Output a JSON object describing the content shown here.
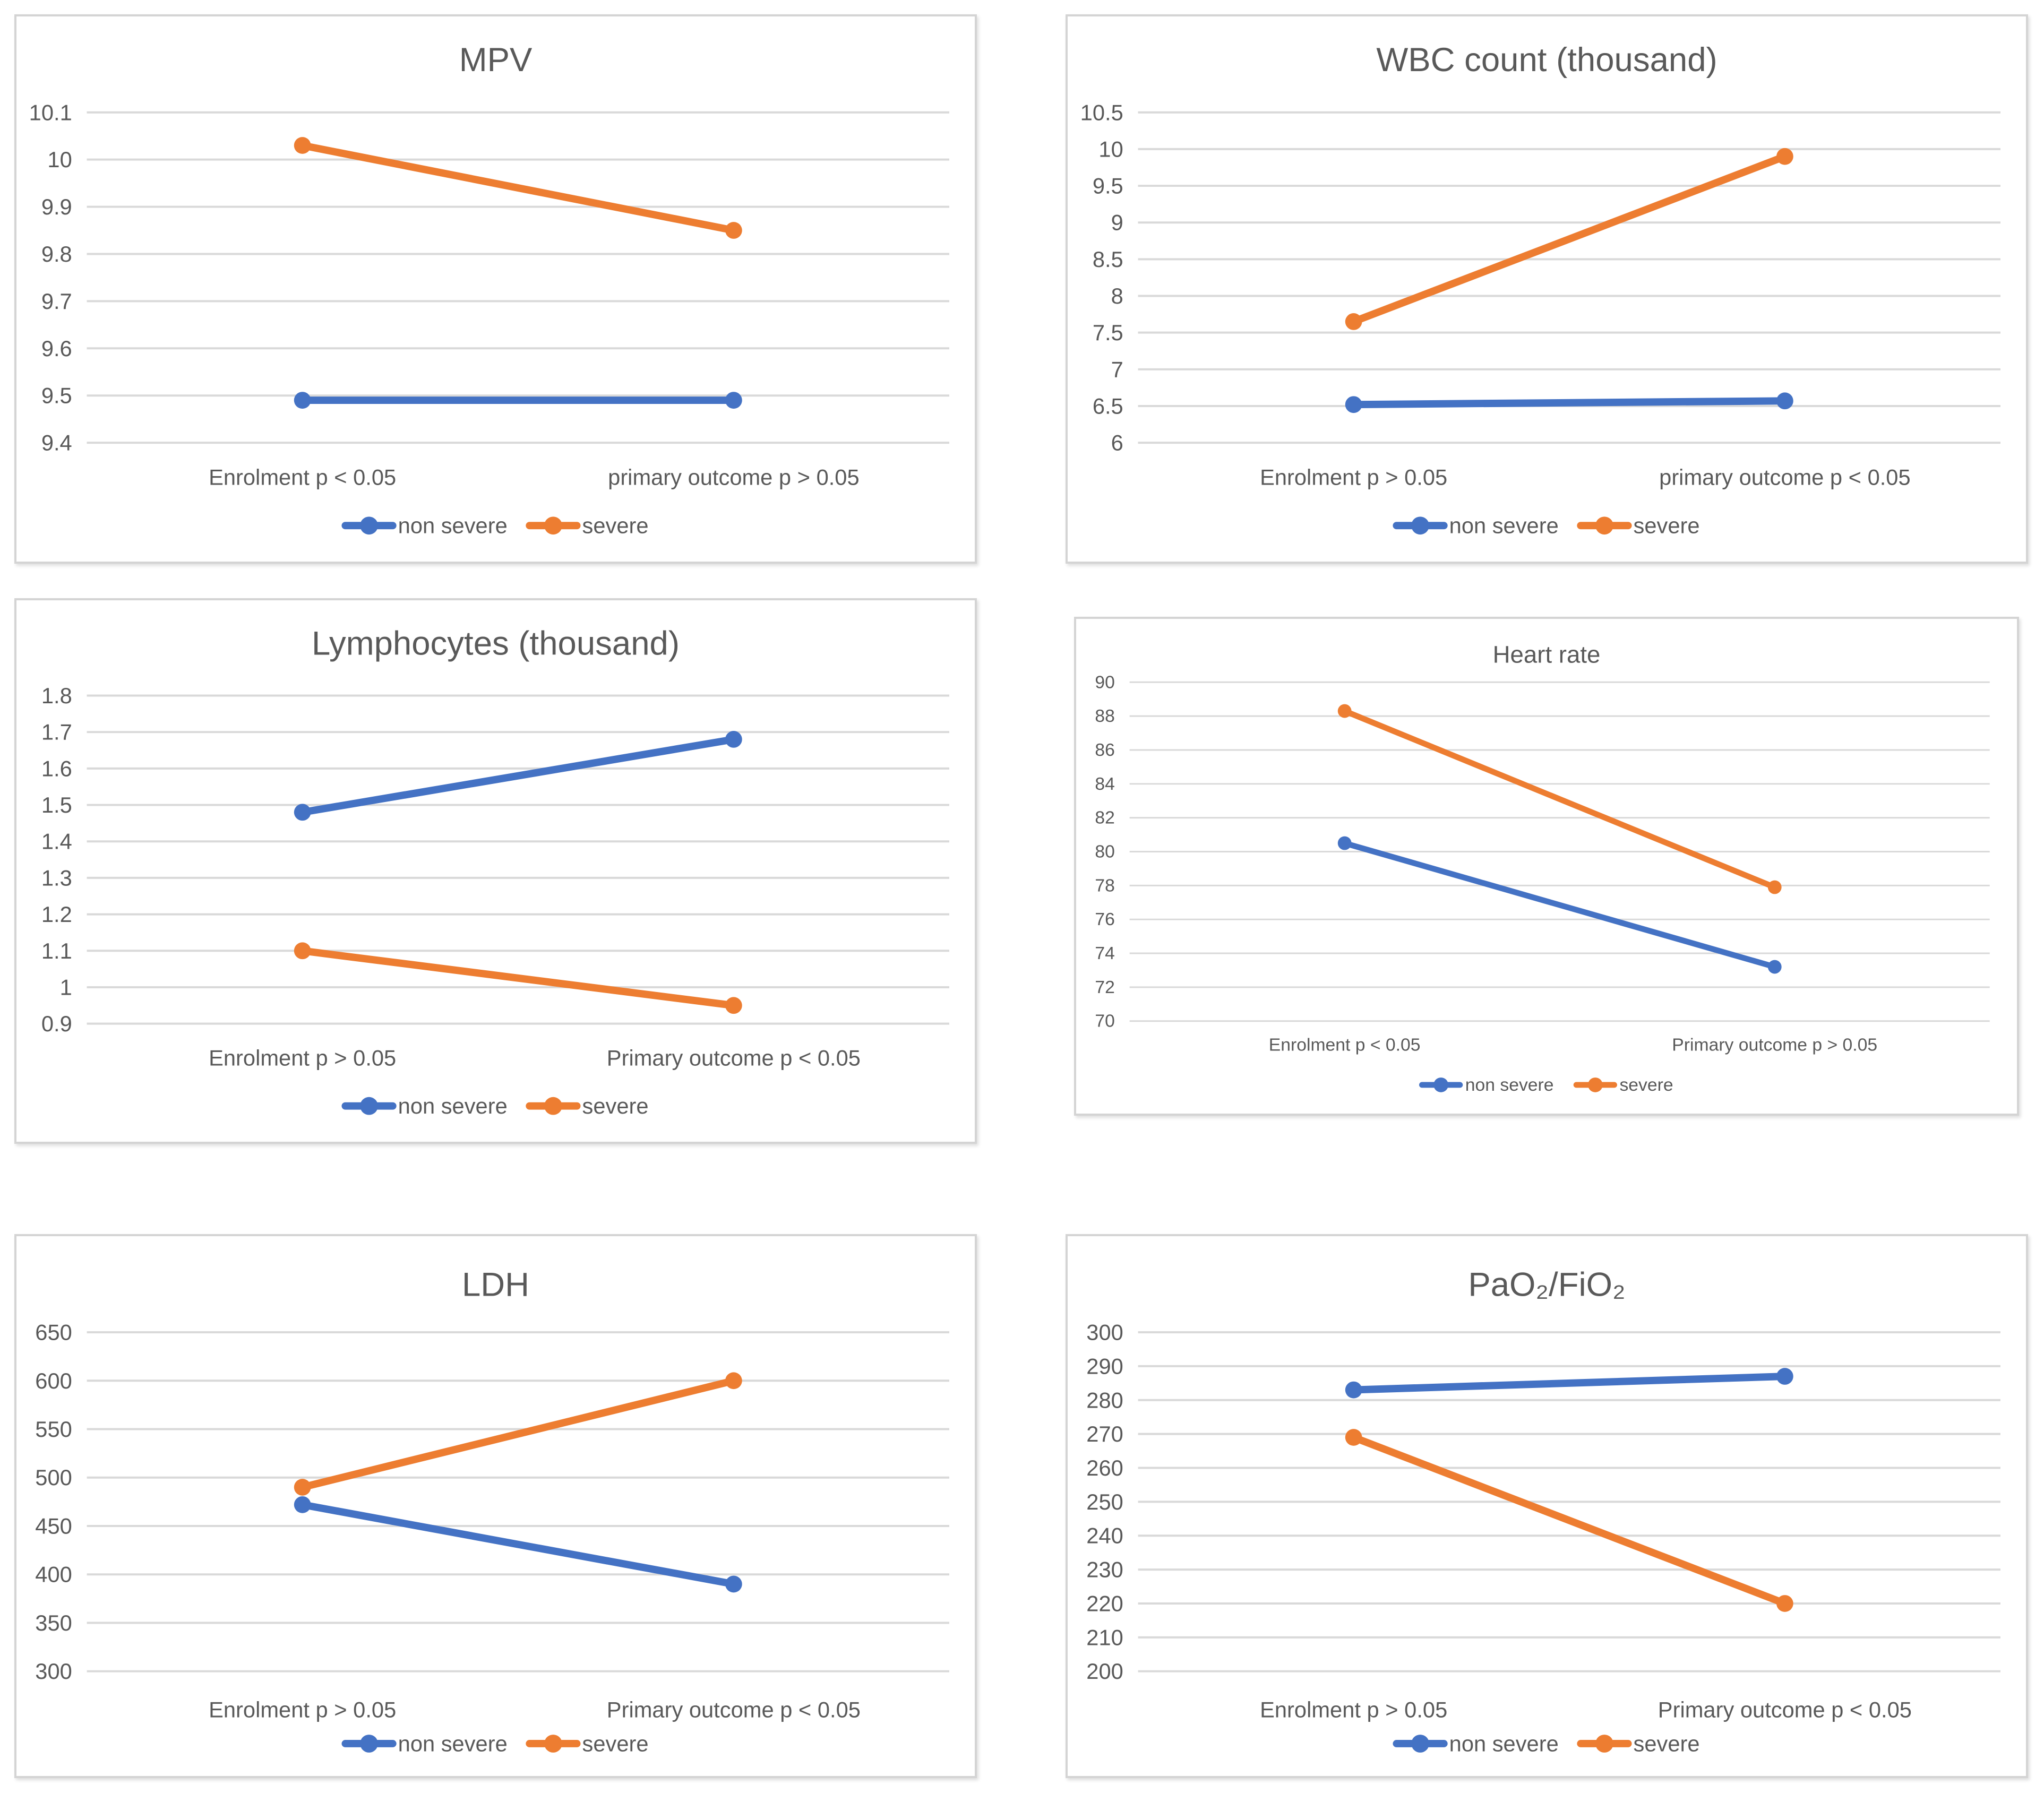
{
  "page": {
    "background": "#ffffff"
  },
  "colors": {
    "non_severe": "#4472C4",
    "severe": "#ED7D31",
    "gridline": "#D9D9D9",
    "text": "#595959",
    "panel_border": "#D4D4D4"
  },
  "legend": {
    "items": [
      {
        "label": "non severe",
        "color": "#4472C4"
      },
      {
        "label": "severe",
        "color": "#ED7D31"
      }
    ]
  },
  "chart_data": [
    {
      "type": "line",
      "title": "MPV",
      "categories": [
        "Enrolment p < 0.05",
        "primary outcome p > 0.05"
      ],
      "series": [
        {
          "name": "non severe",
          "color": "#4472C4",
          "values": [
            9.49,
            9.49
          ]
        },
        {
          "name": "severe",
          "color": "#ED7D31",
          "values": [
            10.03,
            9.85
          ]
        }
      ],
      "ylim": [
        9.4,
        10.1
      ],
      "ytick_step": 0.1,
      "grid": true,
      "legend_position": "bottom"
    },
    {
      "type": "line",
      "title": "WBC count (thousand)",
      "categories": [
        "Enrolment p > 0.05",
        "primary outcome p < 0.05"
      ],
      "series": [
        {
          "name": "non severe",
          "color": "#4472C4",
          "values": [
            6.52,
            6.57
          ]
        },
        {
          "name": "severe",
          "color": "#ED7D31",
          "values": [
            7.65,
            9.9
          ]
        }
      ],
      "ylim": [
        6,
        10.5
      ],
      "ytick_step": 0.5,
      "grid": true,
      "legend_position": "bottom"
    },
    {
      "type": "line",
      "title": "Lymphocytes (thousand)",
      "categories": [
        "Enrolment p > 0.05",
        "Primary outcome p < 0.05"
      ],
      "series": [
        {
          "name": "non severe",
          "color": "#4472C4",
          "values": [
            1.48,
            1.68
          ]
        },
        {
          "name": "severe",
          "color": "#ED7D31",
          "values": [
            1.1,
            0.95
          ]
        }
      ],
      "ylim": [
        0.9,
        1.8
      ],
      "ytick_step": 0.1,
      "grid": true,
      "legend_position": "bottom"
    },
    {
      "type": "line",
      "title": "Heart rate",
      "categories": [
        "Enrolment p < 0.05",
        "Primary outcome p > 0.05"
      ],
      "series": [
        {
          "name": "non severe",
          "color": "#4472C4",
          "values": [
            80.5,
            73.2
          ]
        },
        {
          "name": "severe",
          "color": "#ED7D31",
          "values": [
            88.3,
            77.9
          ]
        }
      ],
      "ylim": [
        70,
        90
      ],
      "ytick_step": 2,
      "grid": true,
      "legend_position": "bottom"
    },
    {
      "type": "line",
      "title": "LDH",
      "categories": [
        "Enrolment p > 0.05",
        "Primary outcome p < 0.05"
      ],
      "series": [
        {
          "name": "non severe",
          "color": "#4472C4",
          "values": [
            472,
            390
          ]
        },
        {
          "name": "severe",
          "color": "#ED7D31",
          "values": [
            490,
            600
          ]
        }
      ],
      "ylim": [
        300,
        650
      ],
      "ytick_step": 50,
      "grid": true,
      "legend_position": "bottom"
    },
    {
      "type": "line",
      "title": "PaO₂/FiO₂",
      "categories": [
        "Enrolment p > 0.05",
        "Primary outcome p < 0.05"
      ],
      "series": [
        {
          "name": "non severe",
          "color": "#4472C4",
          "values": [
            283,
            287
          ]
        },
        {
          "name": "severe",
          "color": "#ED7D31",
          "values": [
            269,
            220
          ]
        }
      ],
      "ylim": [
        200,
        300
      ],
      "ytick_step": 10,
      "grid": true,
      "legend_position": "bottom"
    }
  ]
}
